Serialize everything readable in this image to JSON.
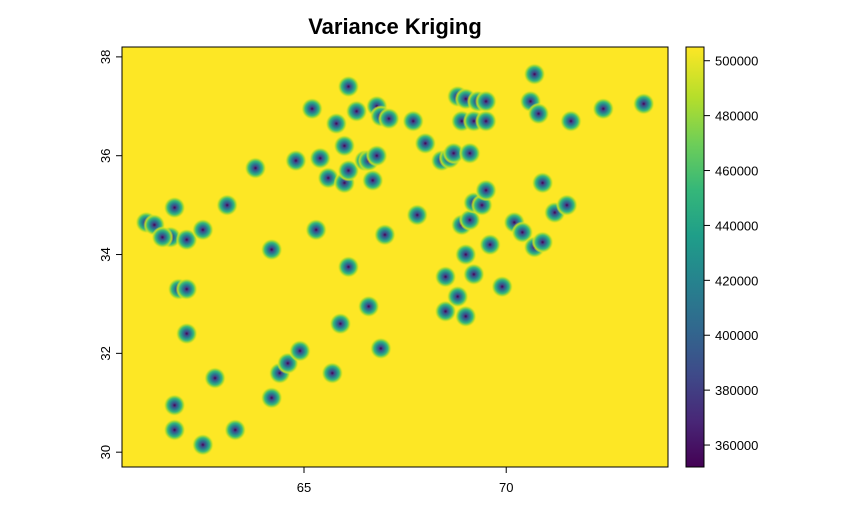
{
  "chart_data": {
    "type": "heatmap",
    "title": "Variance Kriging",
    "xlabel": "",
    "ylabel": "",
    "xlim": [
      60.5,
      74.0
    ],
    "ylim": [
      29.7,
      38.2
    ],
    "x_ticks": [
      65,
      70
    ],
    "y_ticks": [
      30,
      32,
      34,
      36,
      38
    ],
    "colorbar": {
      "min": 352000,
      "max": 505000,
      "ticks": [
        360000,
        380000,
        400000,
        420000,
        440000,
        460000,
        480000,
        500000
      ],
      "tick_labels": [
        "360000",
        "380000",
        "400000",
        "420000",
        "440000",
        "460000",
        "480000",
        "500000"
      ],
      "colormap": "viridis",
      "colors": [
        "#440154",
        "#482777",
        "#3e4a89",
        "#31688e",
        "#26828e",
        "#1f9e89",
        "#35b779",
        "#6ece58",
        "#b5de2b",
        "#fde725"
      ]
    },
    "background_value": 505000,
    "grid": false,
    "legend_position": "right",
    "low_variance_sites": [
      [
        61.1,
        34.65
      ],
      [
        61.3,
        34.6
      ],
      [
        61.7,
        34.35
      ],
      [
        61.5,
        34.35
      ],
      [
        61.8,
        34.95
      ],
      [
        62.1,
        34.3
      ],
      [
        62.5,
        34.5
      ],
      [
        63.1,
        35.0
      ],
      [
        63.8,
        35.75
      ],
      [
        61.9,
        33.3
      ],
      [
        62.1,
        33.3
      ],
      [
        62.1,
        32.4
      ],
      [
        62.8,
        31.5
      ],
      [
        61.8,
        30.95
      ],
      [
        61.8,
        30.45
      ],
      [
        62.5,
        30.15
      ],
      [
        63.3,
        30.45
      ],
      [
        64.2,
        31.1
      ],
      [
        64.4,
        31.6
      ],
      [
        64.6,
        31.8
      ],
      [
        64.9,
        32.05
      ],
      [
        64.2,
        34.1
      ],
      [
        64.8,
        35.9
      ],
      [
        65.2,
        36.95
      ],
      [
        65.3,
        34.5
      ],
      [
        65.4,
        35.95
      ],
      [
        65.6,
        35.55
      ],
      [
        65.8,
        36.65
      ],
      [
        65.7,
        31.6
      ],
      [
        65.9,
        32.6
      ],
      [
        66.0,
        36.2
      ],
      [
        66.0,
        35.45
      ],
      [
        66.1,
        35.7
      ],
      [
        66.1,
        37.4
      ],
      [
        66.1,
        33.75
      ],
      [
        66.3,
        36.9
      ],
      [
        66.5,
        35.9
      ],
      [
        66.6,
        35.9
      ],
      [
        66.7,
        35.5
      ],
      [
        66.6,
        32.95
      ],
      [
        66.8,
        37.0
      ],
      [
        66.8,
        36.0
      ],
      [
        66.9,
        36.8
      ],
      [
        66.9,
        32.1
      ],
      [
        67.0,
        34.4
      ],
      [
        67.1,
        36.75
      ],
      [
        67.7,
        36.7
      ],
      [
        67.8,
        34.8
      ],
      [
        68.0,
        36.25
      ],
      [
        68.4,
        35.9
      ],
      [
        68.5,
        33.55
      ],
      [
        68.5,
        32.85
      ],
      [
        68.6,
        35.95
      ],
      [
        68.7,
        36.05
      ],
      [
        68.8,
        37.2
      ],
      [
        68.8,
        33.15
      ],
      [
        68.9,
        36.7
      ],
      [
        68.9,
        34.6
      ],
      [
        69.0,
        37.15
      ],
      [
        69.0,
        34.0
      ],
      [
        69.0,
        32.75
      ],
      [
        69.1,
        36.05
      ],
      [
        69.1,
        34.7
      ],
      [
        69.2,
        36.7
      ],
      [
        69.2,
        35.05
      ],
      [
        69.3,
        37.1
      ],
      [
        69.2,
        33.6
      ],
      [
        69.4,
        35.0
      ],
      [
        69.5,
        37.1
      ],
      [
        69.5,
        35.3
      ],
      [
        69.5,
        36.7
      ],
      [
        69.6,
        34.2
      ],
      [
        69.9,
        33.35
      ],
      [
        70.2,
        34.65
      ],
      [
        70.4,
        34.45
      ],
      [
        70.6,
        37.1
      ],
      [
        70.7,
        37.65
      ],
      [
        70.7,
        34.15
      ],
      [
        70.8,
        36.85
      ],
      [
        70.9,
        34.25
      ],
      [
        70.9,
        35.45
      ],
      [
        71.2,
        34.85
      ],
      [
        71.5,
        35.0
      ],
      [
        71.6,
        36.7
      ],
      [
        72.4,
        36.95
      ],
      [
        73.4,
        37.05
      ]
    ]
  }
}
